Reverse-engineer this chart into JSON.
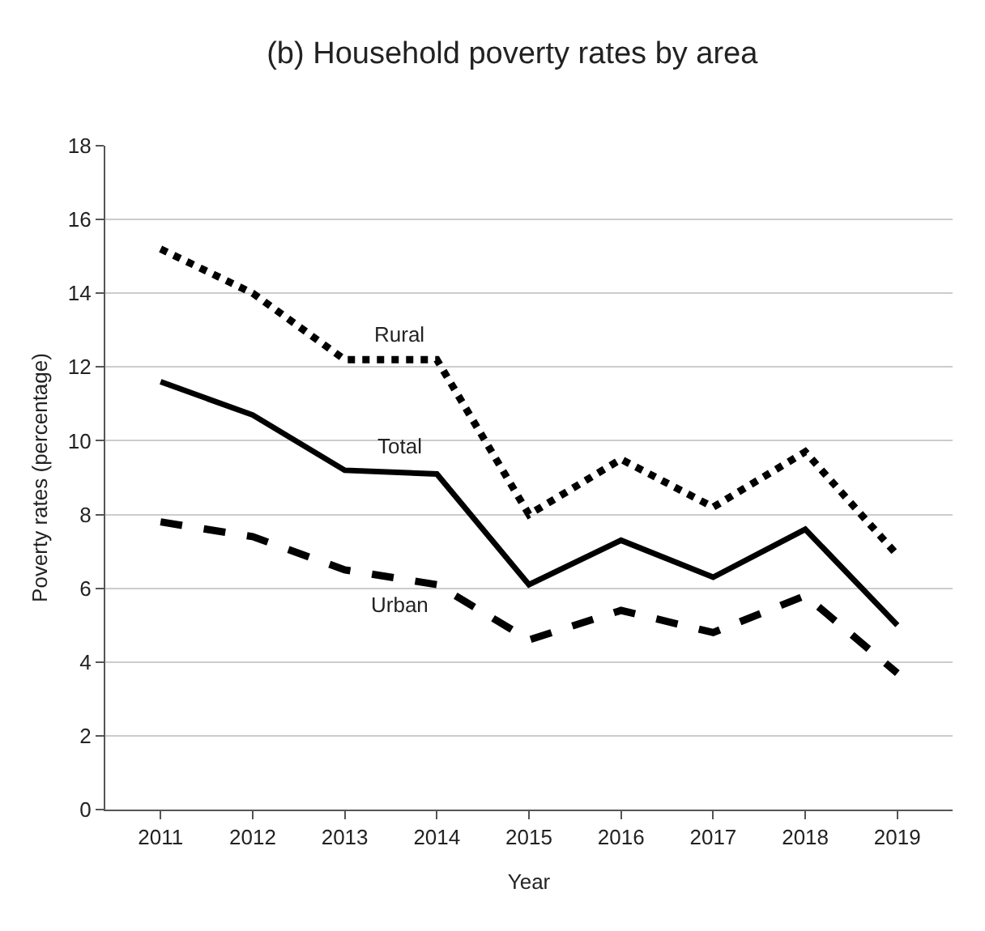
{
  "chart_data": {
    "type": "line",
    "title": "(b) Household poverty rates by area",
    "xlabel": "Year",
    "ylabel": "Poverty rates (percentage)",
    "categories": [
      "2011",
      "2012",
      "2013",
      "2014",
      "2015",
      "2016",
      "2017",
      "2018",
      "2019"
    ],
    "series": [
      {
        "name": "Rural",
        "color": "#000000",
        "line_style": "dotted",
        "values": [
          15.2,
          14.0,
          12.2,
          12.2,
          8.0,
          9.5,
          8.2,
          9.7,
          6.9
        ]
      },
      {
        "name": "Total",
        "color": "#000000",
        "line_style": "solid",
        "values": [
          11.6,
          10.7,
          9.2,
          9.1,
          6.1,
          7.3,
          6.3,
          7.6,
          5.0
        ]
      },
      {
        "name": "Urban",
        "color": "#000000",
        "line_style": "dashed",
        "values": [
          7.8,
          7.4,
          6.5,
          6.1,
          4.6,
          5.4,
          4.8,
          5.8,
          3.7
        ]
      }
    ],
    "ylim": [
      0,
      18
    ],
    "yticks": [
      0,
      2,
      4,
      6,
      8,
      10,
      12,
      14,
      16,
      18
    ],
    "grid": "y",
    "legend": false,
    "marker": "none"
  }
}
